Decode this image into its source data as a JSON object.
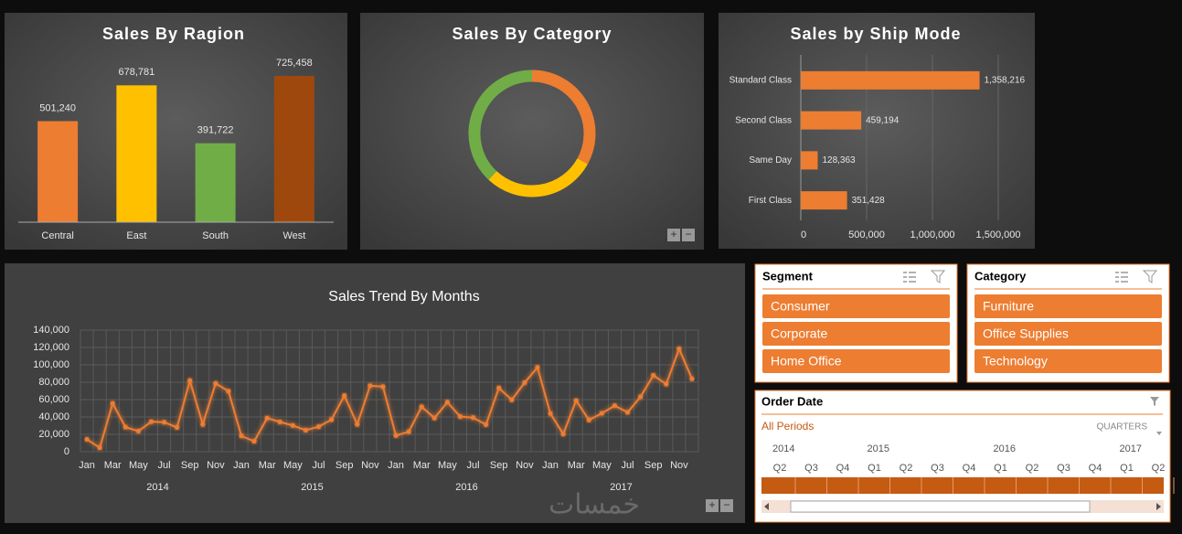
{
  "chart_data": [
    {
      "type": "bar",
      "title": "Sales By Ragion",
      "categories": [
        "Central",
        "East",
        "South",
        "West"
      ],
      "values": [
        501240,
        678781,
        391722,
        725458
      ],
      "value_labels": [
        "501,240",
        "678,781",
        "391,722",
        "725,458"
      ],
      "colors": [
        "#ed7d31",
        "#ffc000",
        "#70ad47",
        "#9e480e"
      ],
      "ylim": [
        0,
        800000
      ]
    },
    {
      "type": "donut",
      "title": "Sales By Category",
      "values": [
        33,
        29,
        38
      ],
      "colors": [
        "#ed7d31",
        "#ffc000",
        "#70ad47"
      ]
    },
    {
      "type": "bar",
      "orientation": "horizontal",
      "title": "Sales by Ship Mode",
      "categories": [
        "Standard Class",
        "Second Class",
        "Same Day",
        "First Class"
      ],
      "values": [
        1358216,
        459194,
        128363,
        351428
      ],
      "value_labels": [
        "1,358,216",
        "459,194",
        "128,363",
        "351,428"
      ],
      "color": "#ed7d31",
      "xlim": [
        0,
        1500000
      ],
      "xticks": [
        0,
        {
          "value": 500000,
          "label": "500,000"
        },
        {
          "value": 1000000,
          "label": "1,000,000"
        },
        {
          "value": 1500000,
          "label": "1,500,000"
        }
      ],
      "grid": true
    },
    {
      "type": "line",
      "title": "Sales Trend By Months",
      "categories": [
        "Jan",
        null,
        "Mar",
        null,
        "May",
        null,
        "Jul",
        null,
        "Sep",
        null,
        "Nov",
        null,
        "Jan",
        null,
        "Mar",
        null,
        "May",
        null,
        "Jul",
        null,
        "Sep",
        null,
        "Nov",
        null,
        "Jan",
        null,
        "Mar",
        null,
        "May",
        null,
        "Jul",
        null,
        "Sep",
        null,
        "Nov",
        null,
        "Jan",
        null,
        "Mar",
        null,
        "May",
        null,
        "Jul",
        null,
        "Sep",
        null,
        "Nov",
        null
      ],
      "year_labels": [
        "2014",
        "2015",
        "2016",
        "2017"
      ],
      "values": [
        14237,
        4520,
        55691,
        28295,
        23648,
        34595,
        33946,
        27909,
        81777,
        31453,
        78629,
        69546,
        18174,
        11951,
        38726,
        34195,
        30132,
        24797,
        28765,
        36898,
        64596,
        31405,
        75973,
        74920,
        18542,
        22979,
        51716,
        38750,
        56988,
        40344,
        39262,
        31115,
        73410,
        59688,
        79412,
        96999,
        43971,
        20301,
        58872,
        36522,
        44261,
        52982,
        45264,
        63121,
        87867,
        77777,
        118448,
        83829
      ],
      "color": "#ed7d31",
      "ylim": [
        0,
        140000
      ],
      "yticks": [
        0,
        {
          "value": 20000,
          "label": "20,000"
        },
        {
          "value": 40000,
          "label": "40,000"
        },
        {
          "value": 60000,
          "label": "60,000"
        },
        {
          "value": 80000,
          "label": "80,000"
        },
        {
          "value": 100000,
          "label": "100,000"
        },
        {
          "value": 120000,
          "label": "120,000"
        },
        {
          "value": 140000,
          "label": "140,000"
        }
      ],
      "grid": true
    }
  ],
  "slicers": [
    {
      "title": "Segment",
      "items": [
        "Consumer",
        "Corporate",
        "Home Office"
      ]
    },
    {
      "title": "Category",
      "items": [
        "Furniture",
        "Office Supplies",
        "Technology"
      ]
    }
  ],
  "timeline": {
    "title": "Order Date",
    "period": "All Periods",
    "level": "QUARTERS",
    "years": [
      "2014",
      "2015",
      "2016",
      "2017"
    ],
    "quarters": [
      "Q2",
      "Q3",
      "Q4",
      "Q1",
      "Q2",
      "Q3",
      "Q4",
      "Q1",
      "Q2",
      "Q3",
      "Q4",
      "Q1",
      "Q2"
    ]
  },
  "watermark": "خمسات"
}
